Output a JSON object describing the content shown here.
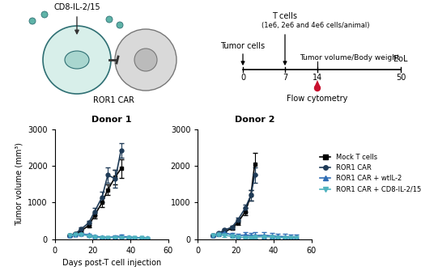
{
  "diagram": {
    "cells": {
      "cytokine": "CD8-IL-2/15",
      "receptor": "ROR1 CAR"
    },
    "timeline": {
      "days": [
        0,
        7,
        14,
        50
      ],
      "events": [
        {
          "day": 0,
          "label": "Tumor cells"
        },
        {
          "day": 7,
          "label": "T cells",
          "detail": "(1e6, 2e6 and 4e6 cells/animal)"
        },
        {
          "day": 14,
          "label": "Tumor volume/Body weight"
        },
        {
          "day": 50,
          "label": "EoL"
        }
      ],
      "sample": {
        "day": 14,
        "label": "Flow cytometry"
      }
    }
  },
  "chart_data": [
    {
      "type": "line",
      "title": "Donor 1",
      "x_label": "Days post-T cell injection",
      "y_label": "Tumor volume (mm³)",
      "x": [
        8,
        11,
        14,
        18,
        21,
        25,
        28,
        32,
        35,
        39,
        42,
        46,
        49
      ],
      "xlim": [
        0,
        60
      ],
      "xticks": [
        0,
        20,
        40,
        60
      ],
      "ylim": [
        0,
        3000
      ],
      "yticks": [
        0,
        1000,
        2000,
        3000
      ],
      "series": [
        {
          "name": "Mock T cells",
          "color": "#000000",
          "marker": "square",
          "values": [
            100,
            150,
            230,
            380,
            650,
            1000,
            1350,
            1700,
            1930,
            null,
            null,
            null,
            null
          ],
          "errors": [
            10,
            20,
            30,
            50,
            80,
            120,
            150,
            200,
            250,
            null,
            null,
            null,
            null
          ]
        },
        {
          "name": "ROR1 CAR",
          "color": "#1f3b57",
          "marker": "circle",
          "values": [
            100,
            160,
            280,
            450,
            750,
            1150,
            1750,
            1650,
            2430,
            null,
            null,
            null,
            null
          ],
          "errors": [
            10,
            20,
            40,
            60,
            100,
            150,
            200,
            250,
            200,
            null,
            null,
            null,
            null
          ]
        },
        {
          "name": "ROR1 CAR + wtIL-2",
          "color": "#2f6db5",
          "marker": "triangle_up",
          "values": [
            100,
            130,
            150,
            120,
            80,
            60,
            50,
            70,
            80,
            60,
            50,
            40,
            30
          ],
          "errors": [
            10,
            20,
            30,
            30,
            20,
            20,
            20,
            30,
            40,
            30,
            20,
            20,
            15
          ]
        },
        {
          "name": "ROR1 CAR + CD8-IL-2/15",
          "color": "#4fb3bf",
          "marker": "triangle_down",
          "values": [
            100,
            120,
            130,
            90,
            60,
            40,
            40,
            50,
            50,
            40,
            35,
            30,
            25
          ],
          "errors": [
            10,
            20,
            25,
            20,
            15,
            15,
            15,
            20,
            20,
            15,
            15,
            10,
            10
          ]
        }
      ]
    },
    {
      "type": "line",
      "title": "Donor 2",
      "legend": "right",
      "x": [
        8,
        11,
        14,
        18,
        21,
        25,
        28,
        30,
        35,
        39,
        42,
        46,
        49,
        52
      ],
      "xlim": [
        0,
        60
      ],
      "xticks": [
        0,
        20,
        40,
        60
      ],
      "ylim": [
        0,
        3000
      ],
      "yticks": [
        0,
        1000,
        2000,
        3000
      ],
      "series": [
        {
          "name": "Mock T cells",
          "color": "#000000",
          "marker": "square",
          "values": [
            100,
            140,
            200,
            300,
            450,
            750,
            1200,
            2050,
            null,
            null,
            null,
            null,
            null,
            null
          ],
          "errors": [
            10,
            20,
            30,
            40,
            60,
            100,
            150,
            300,
            null,
            null,
            null,
            null,
            null,
            null
          ]
        },
        {
          "name": "ROR1 CAR",
          "color": "#1f3b57",
          "marker": "circle",
          "values": [
            100,
            170,
            250,
            330,
            520,
            850,
            1200,
            1750,
            null,
            null,
            null,
            null,
            null,
            null
          ],
          "errors": [
            10,
            20,
            30,
            40,
            70,
            100,
            150,
            200,
            null,
            null,
            null,
            null,
            null,
            null
          ]
        },
        {
          "name": "ROR1 CAR + wtIL-2",
          "color": "#2f6db5",
          "marker": "triangle_up",
          "values": [
            100,
            150,
            180,
            120,
            90,
            120,
            100,
            100,
            110,
            90,
            80,
            70,
            60,
            60
          ],
          "errors": [
            20,
            40,
            60,
            60,
            60,
            80,
            80,
            90,
            90,
            80,
            70,
            70,
            60,
            60
          ]
        },
        {
          "name": "ROR1 CAR + CD8-IL-2/15",
          "color": "#4fb3bf",
          "marker": "triangle_down",
          "values": [
            100,
            120,
            110,
            80,
            60,
            50,
            50,
            60,
            70,
            60,
            50,
            40,
            40,
            40
          ],
          "errors": [
            20,
            30,
            40,
            30,
            30,
            30,
            30,
            40,
            40,
            40,
            30,
            30,
            30,
            30
          ]
        }
      ]
    }
  ]
}
